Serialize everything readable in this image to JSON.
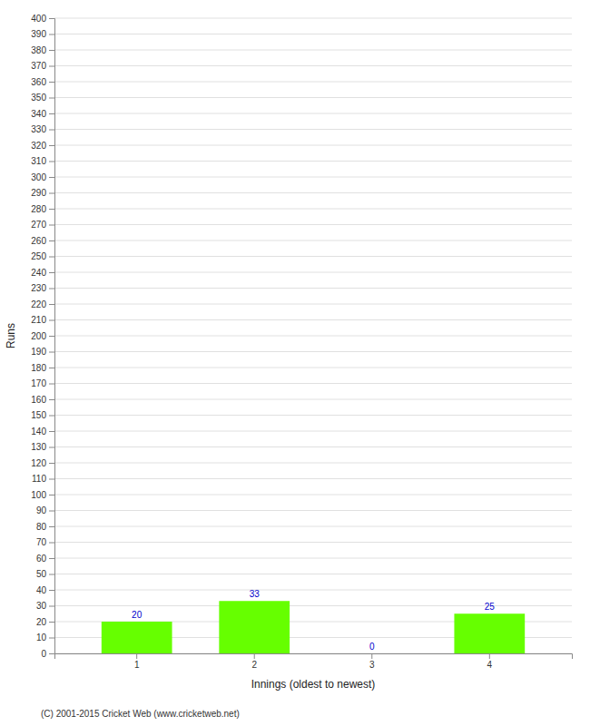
{
  "chart_data": {
    "type": "bar",
    "categories": [
      "1",
      "2",
      "3",
      "4"
    ],
    "values": [
      20,
      33,
      0,
      25
    ],
    "color": "#66ff00",
    "xlabel": "Innings (oldest to newest)",
    "ylabel": "Runs",
    "ylim": [
      0,
      400
    ],
    "yticks": [
      0,
      10,
      20,
      30,
      40,
      50,
      60,
      70,
      80,
      90,
      100,
      110,
      120,
      130,
      140,
      150,
      160,
      170,
      180,
      190,
      200,
      210,
      220,
      230,
      240,
      250,
      260,
      270,
      280,
      290,
      300,
      310,
      320,
      330,
      340,
      350,
      360,
      370,
      380,
      390,
      400
    ],
    "grid": true,
    "data_labels": true,
    "annotations": [
      "(C) 2001-2015 Cricket Web (www.cricketweb.net)"
    ]
  }
}
